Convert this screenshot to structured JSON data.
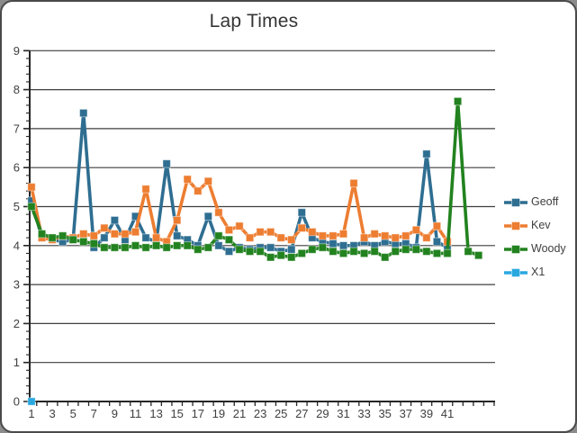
{
  "frame": {
    "title": "Lap Times"
  },
  "chart_data": {
    "type": "line",
    "title": "Lap Times",
    "xlabel": "",
    "ylabel": "",
    "ylim": [
      0,
      9
    ],
    "y_major_step": 1,
    "y_minor_step": 0.2,
    "y_tick_labels": [
      "0",
      "1",
      "2",
      "3",
      "4",
      "5",
      "6",
      "7",
      "8",
      "9"
    ],
    "x_tick_labels": [
      "1",
      "3",
      "5",
      "7",
      "9",
      "11",
      "13",
      "15",
      "17",
      "19",
      "21",
      "23",
      "25",
      "27",
      "29",
      "31",
      "33",
      "35",
      "37",
      "39",
      "41"
    ],
    "x_category_count": 45,
    "grid": "horizontal-major-on",
    "gridline_color": "#3F3F3F",
    "axis_color": "#262626",
    "label_color": "#404040",
    "legend_position": "right",
    "legend_entries": [
      "Geoff",
      "Kev",
      "Woody",
      "X1"
    ],
    "series": [
      {
        "name": "Geoff",
        "color": "#2E6E91",
        "x_start": 1,
        "values": [
          5.15,
          4.2,
          4.15,
          4.1,
          4.15,
          7.4,
          3.95,
          4.2,
          4.65,
          4.15,
          4.75,
          4.2,
          4.1,
          6.1,
          4.25,
          4.15,
          4.0,
          4.75,
          4.0,
          3.85,
          3.95,
          3.9,
          3.95,
          3.95,
          3.85,
          3.9,
          4.85,
          4.2,
          4.1,
          4.05,
          4.0,
          4.0,
          4.1,
          4.0,
          4.1,
          4.05,
          4.05,
          3.95,
          6.35,
          4.1,
          3.95
        ]
      },
      {
        "name": "Kev",
        "color": "#ED7D31",
        "x_start": 1,
        "values": [
          5.5,
          4.2,
          4.15,
          4.25,
          4.2,
          4.3,
          4.25,
          4.45,
          4.3,
          4.3,
          4.35,
          5.45,
          4.2,
          4.1,
          4.65,
          5.7,
          5.4,
          5.65,
          4.85,
          4.4,
          4.5,
          4.2,
          4.35,
          4.35,
          4.2,
          4.15,
          4.45,
          4.35,
          4.25,
          4.25,
          4.3,
          5.6,
          4.2,
          4.3,
          4.25,
          4.2,
          4.25,
          4.4,
          4.2,
          4.5,
          4.1
        ]
      },
      {
        "name": "Woody",
        "color": "#22821F",
        "x_start": 1,
        "values": [
          5.0,
          4.3,
          4.2,
          4.25,
          4.15,
          4.1,
          4.05,
          3.95,
          3.95,
          3.95,
          4.0,
          3.95,
          4.0,
          3.95,
          4.0,
          4.0,
          3.9,
          3.95,
          4.25,
          4.15,
          3.9,
          3.85,
          3.85,
          3.7,
          3.75,
          3.7,
          3.8,
          3.9,
          3.95,
          3.85,
          3.8,
          3.85,
          3.8,
          3.85,
          3.7,
          3.85,
          3.9,
          3.9,
          3.85,
          3.8,
          3.8,
          7.7,
          3.85,
          3.75
        ]
      },
      {
        "name": "X1",
        "color": "#29A8E0",
        "x_start": 1,
        "values": [
          0
        ]
      }
    ]
  }
}
